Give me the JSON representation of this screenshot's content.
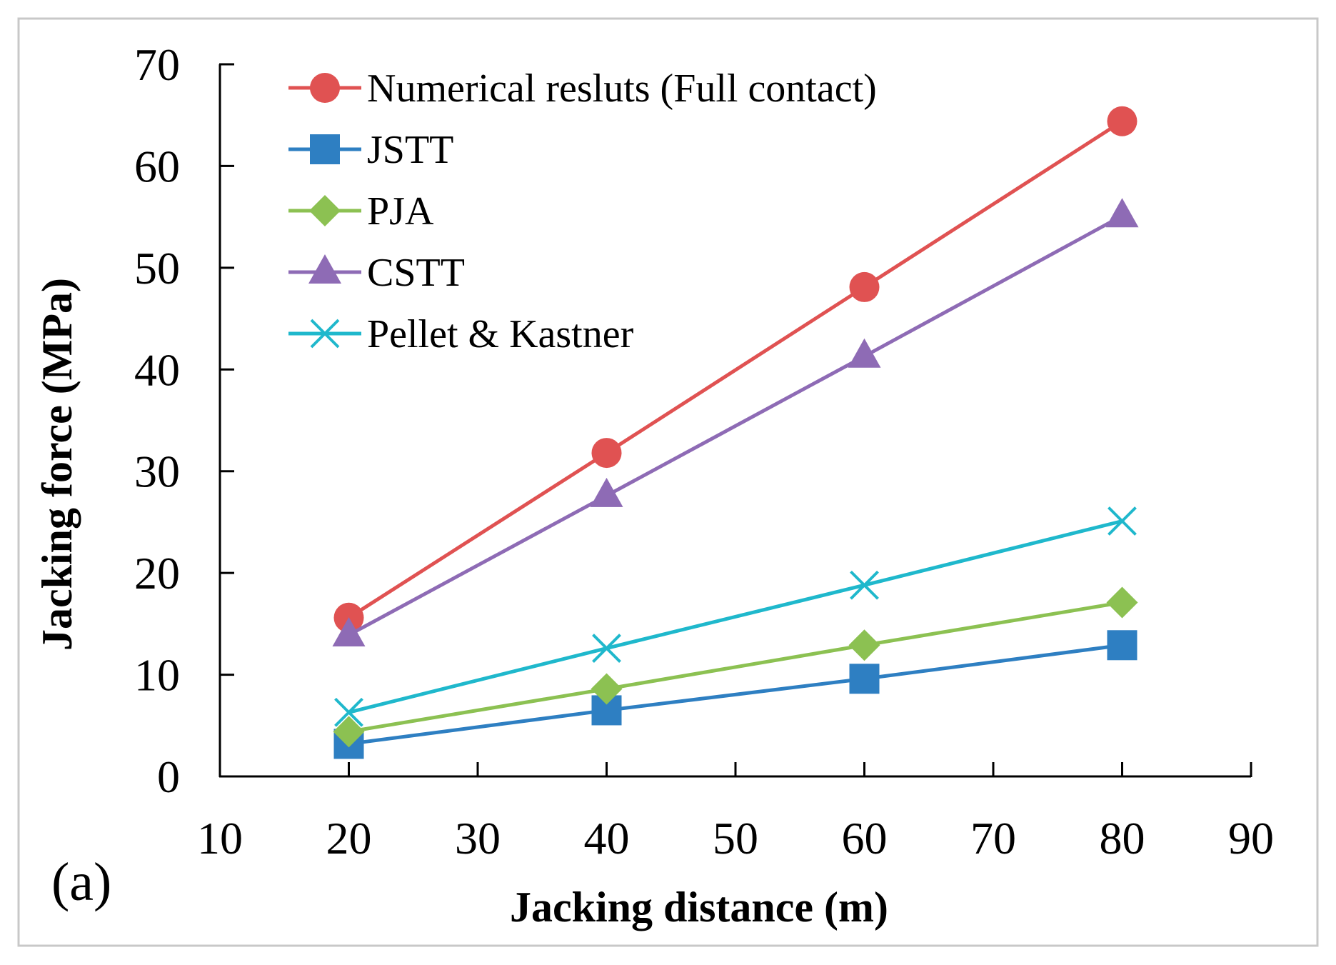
{
  "chart_data": {
    "type": "line",
    "title": "",
    "panel_label": "(a)",
    "xlabel": "Jacking distance (m)",
    "ylabel": "Jacking force (MPa)",
    "xlim": [
      10,
      90
    ],
    "ylim": [
      0,
      70
    ],
    "x_ticks": [
      10,
      20,
      30,
      40,
      50,
      60,
      70,
      80,
      90
    ],
    "y_ticks": [
      0,
      10,
      20,
      30,
      40,
      50,
      60,
      70
    ],
    "grid": false,
    "legend_position": "top-left",
    "x": [
      20,
      40,
      60,
      80
    ],
    "series": [
      {
        "name": "Numerical resluts (Full contact)",
        "values": [
          15.6,
          31.8,
          48.1,
          64.4
        ],
        "color": "#e05252",
        "marker": "circle"
      },
      {
        "name": "JSTT",
        "values": [
          3.2,
          6.5,
          9.6,
          12.9
        ],
        "color": "#2e7fc2",
        "marker": "square"
      },
      {
        "name": "PJA",
        "values": [
          4.4,
          8.6,
          12.9,
          17.1
        ],
        "color": "#8cc152",
        "marker": "diamond"
      },
      {
        "name": "CSTT",
        "values": [
          13.9,
          27.6,
          41.3,
          55.1
        ],
        "color": "#8e6bb5",
        "marker": "triangle"
      },
      {
        "name": "Pellet & Kastner",
        "values": [
          6.3,
          12.6,
          18.8,
          25.1
        ],
        "color": "#1fb8cc",
        "marker": "x"
      }
    ]
  }
}
